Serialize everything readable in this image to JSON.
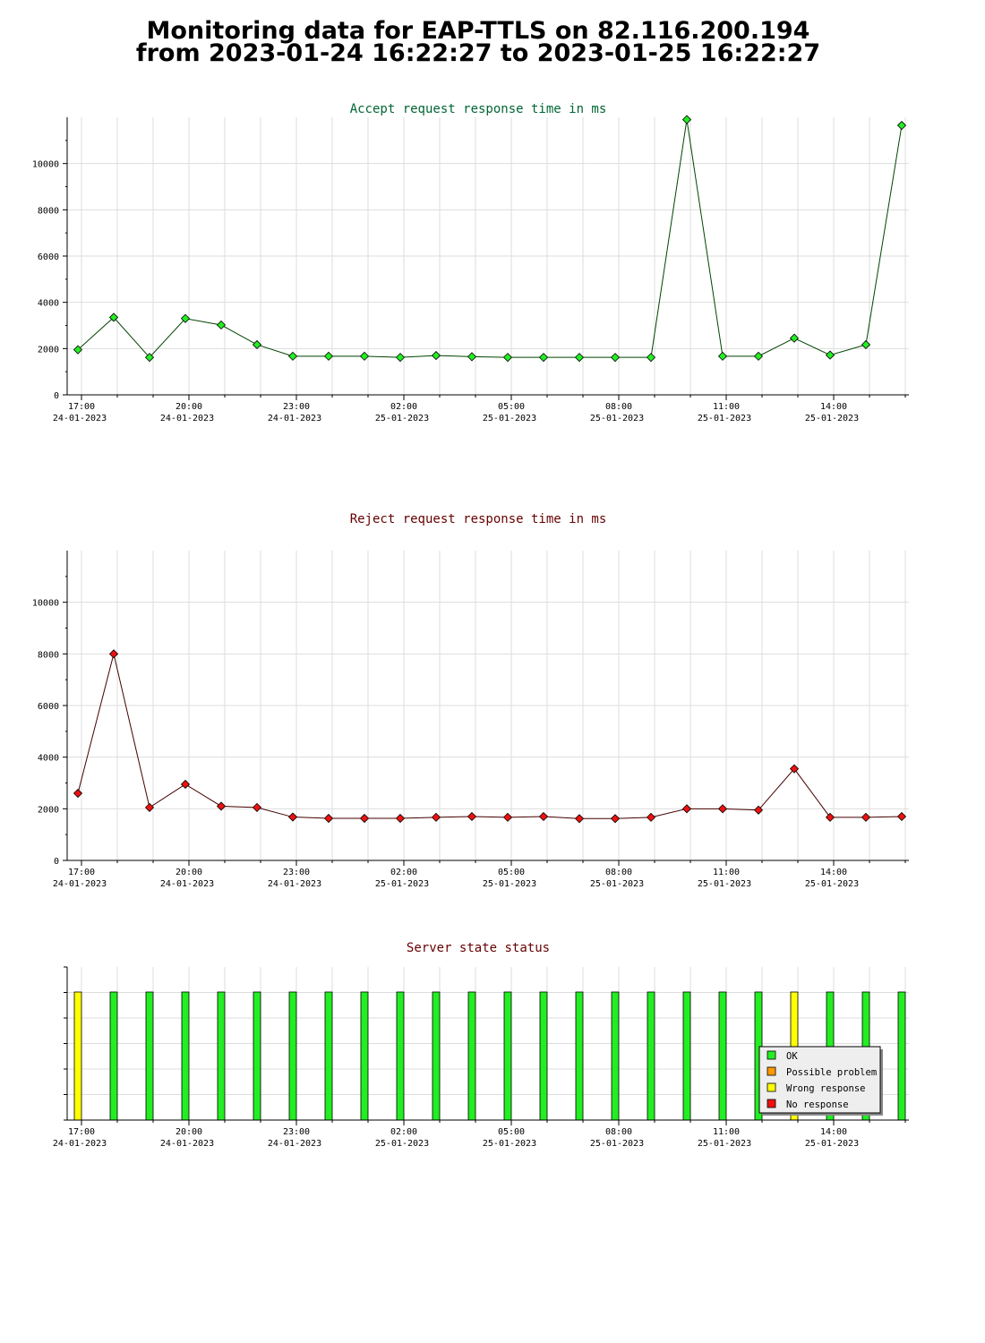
{
  "page": {
    "title_line1": "Monitoring data for EAP-TTLS on 82.116.200.194",
    "title_line2": "from 2023-01-24 16:22:27 to 2023-01-25 16:22:27"
  },
  "colors": {
    "accept_line": "#004400",
    "accept_marker": "#22ee22",
    "accept_title": "#006633",
    "reject_line": "#440000",
    "reject_marker": "#ee1111",
    "reject_title": "#660000",
    "status_title": "#660000",
    "ok": "#22ee22",
    "possible_problem": "#ff9900",
    "wrong_response": "#ffff00",
    "no_response": "#ee1111"
  },
  "chart_data": [
    {
      "type": "line",
      "title": "Accept request response time in ms",
      "y_ticks": [
        0,
        2000,
        4000,
        6000,
        8000,
        10000
      ],
      "ylim": [
        0,
        12000
      ],
      "grid": true,
      "x_hours": [
        16.9,
        17.9,
        18.9,
        19.9,
        20.9,
        21.9,
        22.9,
        23.9,
        24.9,
        25.9,
        26.9,
        27.9,
        28.9,
        29.9,
        30.9,
        31.9,
        32.9,
        33.9,
        34.9,
        35.9,
        36.9,
        37.9,
        38.9,
        39.9
      ],
      "values": [
        1950,
        3350,
        1620,
        3300,
        3020,
        2170,
        1670,
        1670,
        1670,
        1620,
        1700,
        1650,
        1620,
        1620,
        1620,
        1620,
        1620,
        11900,
        1670,
        1670,
        2450,
        1720,
        2170,
        11650
      ],
      "x_ticks": [
        {
          "time": "17:00",
          "date": "24-01-2023",
          "hour": 17
        },
        {
          "time": "20:00",
          "date": "24-01-2023",
          "hour": 20
        },
        {
          "time": "23:00",
          "date": "24-01-2023",
          "hour": 23
        },
        {
          "time": "02:00",
          "date": "25-01-2023",
          "hour": 26
        },
        {
          "time": "05:00",
          "date": "25-01-2023",
          "hour": 29
        },
        {
          "time": "08:00",
          "date": "25-01-2023",
          "hour": 32
        },
        {
          "time": "11:00",
          "date": "25-01-2023",
          "hour": 35
        },
        {
          "time": "14:00",
          "date": "25-01-2023",
          "hour": 38
        }
      ]
    },
    {
      "type": "line",
      "title": "Reject request response time in ms",
      "y_ticks": [
        0,
        2000,
        4000,
        6000,
        8000,
        10000
      ],
      "ylim": [
        0,
        12000
      ],
      "grid": true,
      "x_hours": [
        16.9,
        17.9,
        18.9,
        19.9,
        20.9,
        21.9,
        22.9,
        23.9,
        24.9,
        25.9,
        26.9,
        27.9,
        28.9,
        29.9,
        30.9,
        31.9,
        32.9,
        33.9,
        34.9,
        35.9,
        36.9,
        37.9,
        38.9,
        39.9
      ],
      "values": [
        2600,
        8000,
        2050,
        2950,
        2100,
        2050,
        1680,
        1630,
        1630,
        1630,
        1670,
        1700,
        1670,
        1700,
        1620,
        1620,
        1670,
        2000,
        2000,
        1950,
        3550,
        1670,
        1670,
        1700
      ],
      "x_ticks": [
        {
          "time": "17:00",
          "date": "24-01-2023",
          "hour": 17
        },
        {
          "time": "20:00",
          "date": "24-01-2023",
          "hour": 20
        },
        {
          "time": "23:00",
          "date": "24-01-2023",
          "hour": 23
        },
        {
          "time": "02:00",
          "date": "25-01-2023",
          "hour": 26
        },
        {
          "time": "05:00",
          "date": "25-01-2023",
          "hour": 29
        },
        {
          "time": "08:00",
          "date": "25-01-2023",
          "hour": 32
        },
        {
          "time": "11:00",
          "date": "25-01-2023",
          "hour": 35
        },
        {
          "time": "14:00",
          "date": "25-01-2023",
          "hour": 38
        }
      ]
    },
    {
      "type": "bar",
      "title": "Server state status",
      "grid": true,
      "legend_position": "bottom-right",
      "x_hours": [
        16.9,
        17.9,
        18.9,
        19.9,
        20.9,
        21.9,
        22.9,
        23.9,
        24.9,
        25.9,
        26.9,
        27.9,
        28.9,
        29.9,
        30.9,
        31.9,
        32.9,
        33.9,
        34.9,
        35.9,
        36.9,
        37.9,
        38.9,
        39.9
      ],
      "states": [
        "Wrong response",
        "OK",
        "OK",
        "OK",
        "OK",
        "OK",
        "OK",
        "OK",
        "OK",
        "OK",
        "OK",
        "OK",
        "OK",
        "OK",
        "OK",
        "OK",
        "OK",
        "OK",
        "OK",
        "OK",
        "Wrong response",
        "OK",
        "OK",
        "OK"
      ],
      "legend": [
        {
          "label": "OK",
          "color": "#22ee22"
        },
        {
          "label": "Possible problem",
          "color": "#ff9900"
        },
        {
          "label": "Wrong response",
          "color": "#ffff00"
        },
        {
          "label": "No response",
          "color": "#ee1111"
        }
      ],
      "x_ticks": [
        {
          "time": "17:00",
          "date": "24-01-2023",
          "hour": 17
        },
        {
          "time": "20:00",
          "date": "24-01-2023",
          "hour": 20
        },
        {
          "time": "23:00",
          "date": "24-01-2023",
          "hour": 23
        },
        {
          "time": "02:00",
          "date": "25-01-2023",
          "hour": 26
        },
        {
          "time": "05:00",
          "date": "25-01-2023",
          "hour": 29
        },
        {
          "time": "08:00",
          "date": "25-01-2023",
          "hour": 32
        },
        {
          "time": "11:00",
          "date": "25-01-2023",
          "hour": 35
        },
        {
          "time": "14:00",
          "date": "25-01-2023",
          "hour": 38
        }
      ]
    }
  ]
}
